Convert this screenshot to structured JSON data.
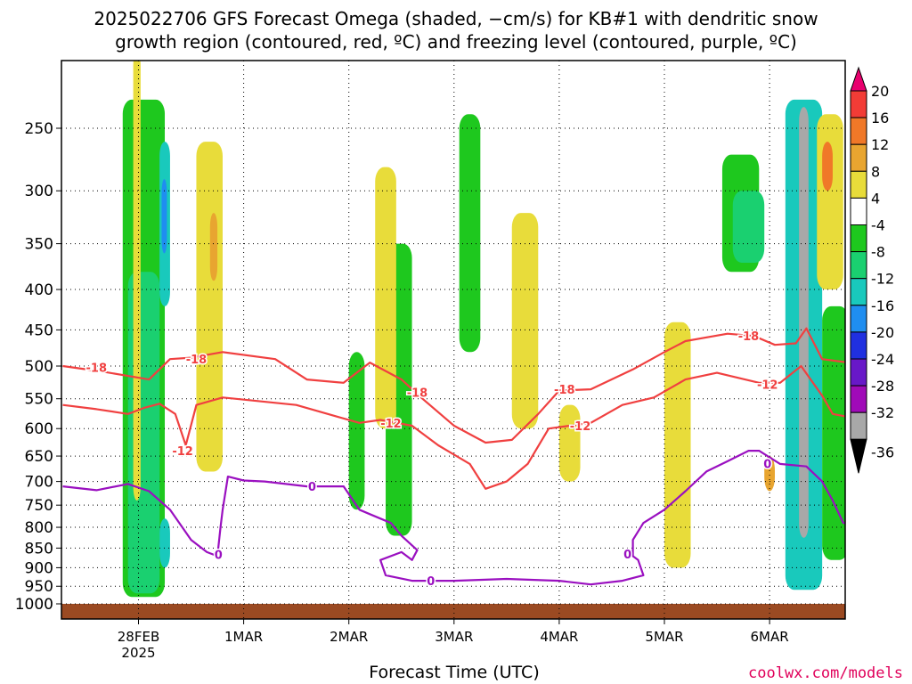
{
  "title": {
    "line1": "2025022706 GFS Forecast Omega (shaded, −cm/s) for KB#1 with dendritic snow",
    "line2": "growth region (contoured, red, ºC) and freezing level (contoured, purple, ºC)"
  },
  "xlabel": "Forecast Time (UTC)",
  "credit": "coolwx.com/models",
  "colors": {
    "dgz_contour": "#f04040",
    "freezing_contour": "#9a10c0",
    "ground": "#9b4a22",
    "grid": "#000000"
  },
  "chart_data": {
    "type": "heatmap",
    "title": "2025022706 GFS Forecast Omega (shaded, −cm/s) for KB#1 with dendritic snow growth region (contoured, red, ºC) and freezing level (contoured, purple, ºC)",
    "xlabel": "Forecast Time (UTC)",
    "ylabel": "",
    "y_scale": "log-pressure (inverted)",
    "y_ticks": [
      250,
      300,
      350,
      400,
      450,
      500,
      550,
      600,
      650,
      700,
      750,
      800,
      850,
      900,
      950,
      1000
    ],
    "x_ticks": [
      {
        "label": "28FEB",
        "sub": "2025",
        "t": 0
      },
      {
        "label": "1MAR",
        "sub": "",
        "t": 1
      },
      {
        "label": "2MAR",
        "sub": "",
        "t": 2
      },
      {
        "label": "3MAR",
        "sub": "",
        "t": 3
      },
      {
        "label": "4MAR",
        "sub": "",
        "t": 4
      },
      {
        "label": "5MAR",
        "sub": "",
        "t": 5
      },
      {
        "label": "6MAR",
        "sub": "",
        "t": 6
      }
    ],
    "x_range_days": [
      -0.72,
      6.75
    ],
    "y_range_hpa": [
      200,
      1010
    ],
    "grid": true,
    "colorbar": {
      "labels": [
        20,
        16,
        12,
        8,
        4,
        -4,
        -8,
        -12,
        -16,
        -20,
        -24,
        -28,
        -32,
        -36
      ],
      "bins": [
        {
          "lo": 20,
          "hi": null,
          "color": "#e8006e"
        },
        {
          "lo": 16,
          "hi": 20,
          "color": "#f23c36"
        },
        {
          "lo": 12,
          "hi": 16,
          "color": "#f07828"
        },
        {
          "lo": 8,
          "hi": 12,
          "color": "#e8a530"
        },
        {
          "lo": 4,
          "hi": 8,
          "color": "#e8dc3a"
        },
        {
          "lo": -4,
          "hi": 4,
          "color": "#ffffff"
        },
        {
          "lo": -8,
          "hi": -4,
          "color": "#1ec81e"
        },
        {
          "lo": -12,
          "hi": -8,
          "color": "#1ad070"
        },
        {
          "lo": -16,
          "hi": -12,
          "color": "#19c9bc"
        },
        {
          "lo": -20,
          "hi": -16,
          "color": "#1f8ef0"
        },
        {
          "lo": -24,
          "hi": -20,
          "color": "#2030e0"
        },
        {
          "lo": -28,
          "hi": -24,
          "color": "#6818c8"
        },
        {
          "lo": -32,
          "hi": -28,
          "color": "#a00ab8"
        },
        {
          "lo": -36,
          "hi": -32,
          "color": "#a8a8a8"
        },
        {
          "lo": null,
          "hi": -36,
          "color": "#000000"
        }
      ]
    },
    "shaded_features": [
      {
        "bin": -8,
        "t": [
          -0.15,
          0.25
        ],
        "p": [
          230,
          980
        ]
      },
      {
        "bin": -12,
        "t": [
          -0.1,
          0.2
        ],
        "p": [
          380,
          970
        ]
      },
      {
        "bin": -16,
        "t": [
          0.2,
          0.3
        ],
        "p": [
          260,
          420
        ]
      },
      {
        "bin": -20,
        "t": [
          0.22,
          0.27
        ],
        "p": [
          290,
          360
        ]
      },
      {
        "bin": -16,
        "t": [
          0.2,
          0.3
        ],
        "p": [
          780,
          900
        ]
      },
      {
        "bin": 4,
        "t": [
          -0.05,
          0.02
        ],
        "p": [
          200,
          740
        ]
      },
      {
        "bin": 4,
        "t": [
          0.55,
          0.8
        ],
        "p": [
          260,
          680
        ]
      },
      {
        "bin": 8,
        "t": [
          0.68,
          0.75
        ],
        "p": [
          320,
          390
        ]
      },
      {
        "bin": -8,
        "t": [
          2.0,
          2.15
        ],
        "p": [
          480,
          760
        ]
      },
      {
        "bin": -8,
        "t": [
          2.35,
          2.6
        ],
        "p": [
          350,
          820
        ]
      },
      {
        "bin": 4,
        "t": [
          2.25,
          2.45
        ],
        "p": [
          280,
          600
        ]
      },
      {
        "bin": -8,
        "t": [
          3.05,
          3.25
        ],
        "p": [
          240,
          480
        ]
      },
      {
        "bin": 4,
        "t": [
          3.55,
          3.8
        ],
        "p": [
          320,
          600
        ]
      },
      {
        "bin": 4,
        "t": [
          4.0,
          4.2
        ],
        "p": [
          560,
          700
        ]
      },
      {
        "bin": 4,
        "t": [
          5.0,
          5.25
        ],
        "p": [
          440,
          900
        ]
      },
      {
        "bin": -8,
        "t": [
          5.55,
          5.9
        ],
        "p": [
          270,
          380
        ]
      },
      {
        "bin": -12,
        "t": [
          5.65,
          5.95
        ],
        "p": [
          300,
          370
        ]
      },
      {
        "bin": 8,
        "t": [
          5.95,
          6.05
        ],
        "p": [
          650,
          720
        ]
      },
      {
        "bin": -16,
        "t": [
          6.15,
          6.5
        ],
        "p": [
          230,
          960
        ]
      },
      {
        "bin": -36,
        "t": [
          6.28,
          6.37
        ],
        "p": [
          235,
          825
        ]
      },
      {
        "bin": 4,
        "t": [
          6.45,
          6.7
        ],
        "p": [
          240,
          400
        ]
      },
      {
        "bin": 12,
        "t": [
          6.5,
          6.6
        ],
        "p": [
          260,
          300
        ]
      },
      {
        "bin": -8,
        "t": [
          6.5,
          6.75
        ],
        "p": [
          420,
          880
        ]
      }
    ],
    "contours": [
      {
        "label": "-18",
        "color": "#f04040",
        "points": [
          [
            -0.72,
            500
          ],
          [
            -0.35,
            508
          ],
          [
            0.1,
            520
          ],
          [
            0.3,
            490
          ],
          [
            0.5,
            488
          ],
          [
            0.8,
            480
          ],
          [
            1.3,
            490
          ],
          [
            1.6,
            520
          ],
          [
            1.95,
            525
          ],
          [
            2.2,
            495
          ],
          [
            2.5,
            520
          ],
          [
            2.7,
            550
          ],
          [
            3.0,
            595
          ],
          [
            3.3,
            625
          ],
          [
            3.55,
            620
          ],
          [
            3.8,
            575
          ],
          [
            4.0,
            537
          ],
          [
            4.3,
            535
          ],
          [
            4.7,
            505
          ],
          [
            5.0,
            480
          ],
          [
            5.2,
            465
          ],
          [
            5.6,
            455
          ],
          [
            5.85,
            458
          ],
          [
            6.05,
            470
          ],
          [
            6.25,
            468
          ],
          [
            6.35,
            448
          ],
          [
            6.5,
            490
          ],
          [
            6.75,
            495
          ]
        ],
        "label_positions": [
          [
            -0.4,
            502
          ],
          [
            0.55,
            490
          ],
          [
            2.65,
            540
          ],
          [
            4.05,
            535
          ],
          [
            5.8,
            458
          ]
        ]
      },
      {
        "label": "-12",
        "color": "#f04040",
        "points": [
          [
            -0.72,
            560
          ],
          [
            -0.4,
            567
          ],
          [
            -0.1,
            575
          ],
          [
            0.05,
            565
          ],
          [
            0.2,
            558
          ],
          [
            0.35,
            575
          ],
          [
            0.45,
            630
          ],
          [
            0.55,
            560
          ],
          [
            0.8,
            548
          ],
          [
            1.5,
            560
          ],
          [
            1.9,
            580
          ],
          [
            2.1,
            590
          ],
          [
            2.3,
            585
          ],
          [
            2.6,
            595
          ],
          [
            2.85,
            630
          ],
          [
            3.15,
            665
          ],
          [
            3.3,
            715
          ],
          [
            3.5,
            700
          ],
          [
            3.7,
            665
          ],
          [
            3.9,
            600
          ],
          [
            4.1,
            595
          ],
          [
            4.3,
            590
          ],
          [
            4.6,
            560
          ],
          [
            4.9,
            548
          ],
          [
            5.2,
            520
          ],
          [
            5.5,
            510
          ],
          [
            5.9,
            525
          ],
          [
            6.1,
            525
          ],
          [
            6.3,
            500
          ],
          [
            6.5,
            545
          ],
          [
            6.6,
            575
          ],
          [
            6.75,
            580
          ]
        ],
        "label_positions": [
          [
            0.42,
            640
          ],
          [
            2.4,
            590
          ],
          [
            4.2,
            595
          ],
          [
            5.98,
            527
          ]
        ]
      },
      {
        "label": "0",
        "color": "#9a10c0",
        "points": [
          [
            -0.72,
            710
          ],
          [
            -0.4,
            718
          ],
          [
            -0.1,
            705
          ],
          [
            0.1,
            720
          ],
          [
            0.3,
            760
          ],
          [
            0.5,
            830
          ],
          [
            0.65,
            860
          ],
          [
            0.75,
            870
          ],
          [
            0.78,
            800
          ],
          [
            0.8,
            760
          ],
          [
            0.85,
            690
          ],
          [
            1.0,
            698
          ],
          [
            1.2,
            700
          ],
          [
            1.6,
            710
          ],
          [
            1.95,
            710
          ],
          [
            2.1,
            760
          ],
          [
            2.2,
            770
          ],
          [
            2.4,
            790
          ],
          [
            2.5,
            820
          ],
          [
            2.65,
            855
          ],
          [
            2.6,
            880
          ],
          [
            2.5,
            860
          ],
          [
            2.3,
            880
          ],
          [
            2.35,
            920
          ],
          [
            2.6,
            935
          ],
          [
            3.0,
            935
          ],
          [
            3.5,
            930
          ],
          [
            4.0,
            935
          ],
          [
            4.3,
            945
          ],
          [
            4.6,
            935
          ],
          [
            4.8,
            920
          ],
          [
            4.75,
            880
          ],
          [
            4.7,
            870
          ],
          [
            4.7,
            830
          ],
          [
            4.8,
            790
          ],
          [
            5.0,
            760
          ],
          [
            5.2,
            720
          ],
          [
            5.4,
            680
          ],
          [
            5.6,
            660
          ],
          [
            5.8,
            640
          ],
          [
            5.9,
            640
          ],
          [
            6.1,
            665
          ],
          [
            6.35,
            670
          ],
          [
            6.5,
            700
          ],
          [
            6.6,
            740
          ],
          [
            6.7,
            790
          ],
          [
            6.75,
            790
          ]
        ],
        "label_positions": [
          [
            0.76,
            866
          ],
          [
            1.65,
            710
          ],
          [
            2.78,
            935
          ],
          [
            4.65,
            865
          ],
          [
            5.98,
            664
          ]
        ]
      }
    ]
  }
}
